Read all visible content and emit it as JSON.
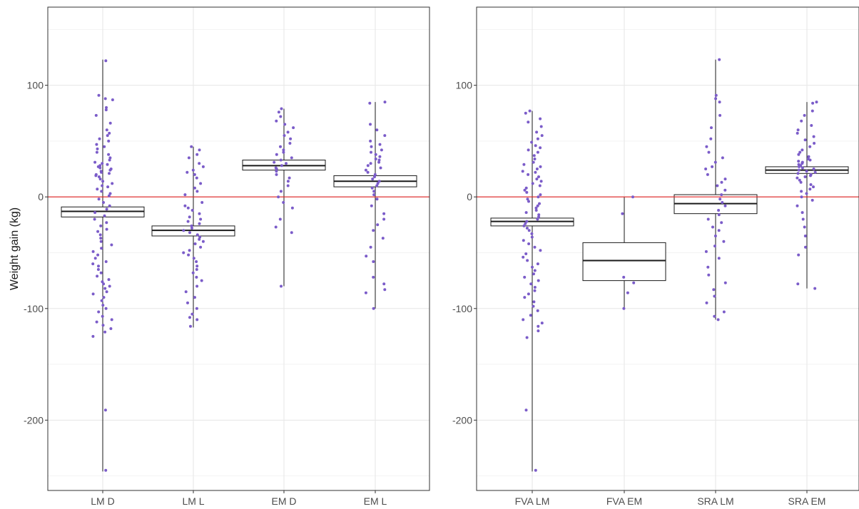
{
  "colors": {
    "point": "#7b5cc9",
    "reference_line": "#e02020",
    "box": "#1a1a1a",
    "grid_major": "#e6e6e6",
    "grid_minor": "#f3f3f3",
    "panel_border": "#333333"
  },
  "chart_data": [
    {
      "type": "box",
      "overlay": "jittered points",
      "xlabel": "",
      "ylabel": "Weight gain (kg)",
      "ylim": [
        -263,
        170
      ],
      "yticks": [
        100,
        0,
        -100,
        -200
      ],
      "grid": true,
      "reference_line": 0,
      "categories": [
        "LM D",
        "LM L",
        "EM D",
        "EM L"
      ],
      "boxes": [
        {
          "min": -246,
          "q1": -18,
          "median": -13,
          "q3": -9,
          "max": 123
        },
        {
          "min": -117,
          "q1": -35,
          "median": -30,
          "q3": -26,
          "max": 45
        },
        {
          "min": -80,
          "q1": 24,
          "median": 28,
          "q3": 33,
          "max": 79
        },
        {
          "min": -100,
          "q1": 9,
          "median": 14,
          "q3": 19,
          "max": 85
        }
      ],
      "points": [
        [
          122,
          91,
          88,
          87,
          80,
          78,
          73,
          66,
          60,
          57,
          55,
          52,
          50,
          47,
          45,
          43,
          40,
          38,
          35,
          33,
          31,
          30,
          29,
          28,
          27,
          26,
          25,
          24,
          23,
          22,
          21,
          20,
          19,
          18,
          16,
          14,
          12,
          10,
          9,
          7,
          5,
          3,
          1,
          -2,
          -5,
          -8,
          -11,
          -14,
          -17,
          -20,
          -23,
          -26,
          -29,
          -31,
          -34,
          -37,
          -40,
          -43,
          -46,
          -49,
          -52,
          -55,
          -58,
          -60,
          -62,
          -65,
          -68,
          -71,
          -74,
          -76,
          -78,
          -80,
          -82,
          -85,
          -87,
          -90,
          -93,
          -97,
          -100,
          -103,
          -107,
          -110,
          -112,
          -115,
          -118,
          -121,
          -125,
          -191,
          -245
        ],
        [
          45,
          42,
          38,
          35,
          30,
          27,
          24,
          22,
          20,
          17,
          12,
          8,
          5,
          2,
          -5,
          -8,
          -10,
          -12,
          -15,
          -18,
          -20,
          -22,
          -24,
          -26,
          -28,
          -30,
          -32,
          -34,
          -36,
          -38,
          -40,
          -42,
          -45,
          -48,
          -50,
          -52,
          -55,
          -58,
          -62,
          -65,
          -68,
          -72,
          -75,
          -80,
          -85,
          -90,
          -95,
          -100,
          -105,
          -108,
          -110,
          -116
        ],
        [
          79,
          76,
          72,
          68,
          65,
          62,
          58,
          55,
          52,
          48,
          45,
          42,
          40,
          38,
          35,
          33,
          31,
          30,
          28,
          26,
          25,
          23,
          20,
          17,
          14,
          10,
          5,
          0,
          -5,
          -10,
          -20,
          -27,
          -32,
          -80
        ],
        [
          85,
          84,
          65,
          60,
          55,
          50,
          47,
          45,
          42,
          40,
          38,
          36,
          34,
          33,
          31,
          30,
          28,
          26,
          24,
          22,
          20,
          18,
          16,
          14,
          12,
          10,
          8,
          5,
          2,
          -2,
          -8,
          -15,
          -20,
          -25,
          -30,
          -37,
          -45,
          -53,
          -58,
          -72,
          -78,
          -83,
          -86,
          -100
        ]
      ]
    },
    {
      "type": "box",
      "overlay": "jittered points",
      "xlabel": "",
      "ylabel": "",
      "ylim": [
        -263,
        170
      ],
      "yticks": [
        100,
        0,
        -100,
        -200
      ],
      "grid": true,
      "reference_line": 0,
      "categories": [
        "FVA LM",
        "FVA EM",
        "SRA LM",
        "SRA EM"
      ],
      "boxes": [
        {
          "min": -246,
          "q1": -26,
          "median": -22,
          "q3": -19,
          "max": 77
        },
        {
          "min": -100,
          "q1": -75,
          "median": -57,
          "q3": -41,
          "max": 0
        },
        {
          "min": -110,
          "q1": -15,
          "median": -6,
          "q3": 2,
          "max": 123
        },
        {
          "min": -82,
          "q1": 21,
          "median": 24,
          "q3": 27,
          "max": 85
        }
      ],
      "points": [
        [
          77,
          75,
          70,
          67,
          63,
          58,
          55,
          52,
          49,
          46,
          44,
          42,
          40,
          37,
          34,
          31,
          29,
          27,
          25,
          23,
          22,
          20,
          18,
          16,
          14,
          12,
          10,
          8,
          6,
          4,
          2,
          0,
          -2,
          -4,
          -6,
          -8,
          -10,
          -12,
          -14,
          -16,
          -18,
          -20,
          -22,
          -24,
          -26,
          -28,
          -30,
          -33,
          -36,
          -39,
          -42,
          -45,
          -48,
          -51,
          -54,
          -57,
          -60,
          -63,
          -66,
          -69,
          -72,
          -75,
          -78,
          -81,
          -84,
          -87,
          -90,
          -94,
          -98,
          -102,
          -106,
          -110,
          -113,
          -116,
          -120,
          -126,
          -191,
          -245
        ],
        [
          0,
          -15,
          -72,
          -77,
          -86,
          -100
        ],
        [
          123,
          91,
          88,
          85,
          73,
          62,
          52,
          45,
          40,
          35,
          31,
          27,
          25,
          20,
          16,
          13,
          10,
          6,
          2,
          -2,
          -5,
          -8,
          -12,
          -16,
          -20,
          -23,
          -27,
          -30,
          -35,
          -40,
          -44,
          -49,
          -55,
          -63,
          -70,
          -77,
          -83,
          -89,
          -95,
          -103,
          -107,
          -110
        ],
        [
          85,
          84,
          77,
          73,
          68,
          64,
          60,
          57,
          54,
          51,
          48,
          45,
          42,
          40,
          38,
          36,
          34,
          33,
          32,
          31,
          30,
          29,
          28,
          27,
          26,
          25,
          24,
          23,
          22,
          21,
          20,
          19,
          18,
          17,
          15,
          13,
          11,
          9,
          7,
          5,
          3,
          0,
          -3,
          -8,
          -14,
          -20,
          -27,
          -35,
          -45,
          -52,
          -78,
          -82
        ]
      ]
    }
  ]
}
